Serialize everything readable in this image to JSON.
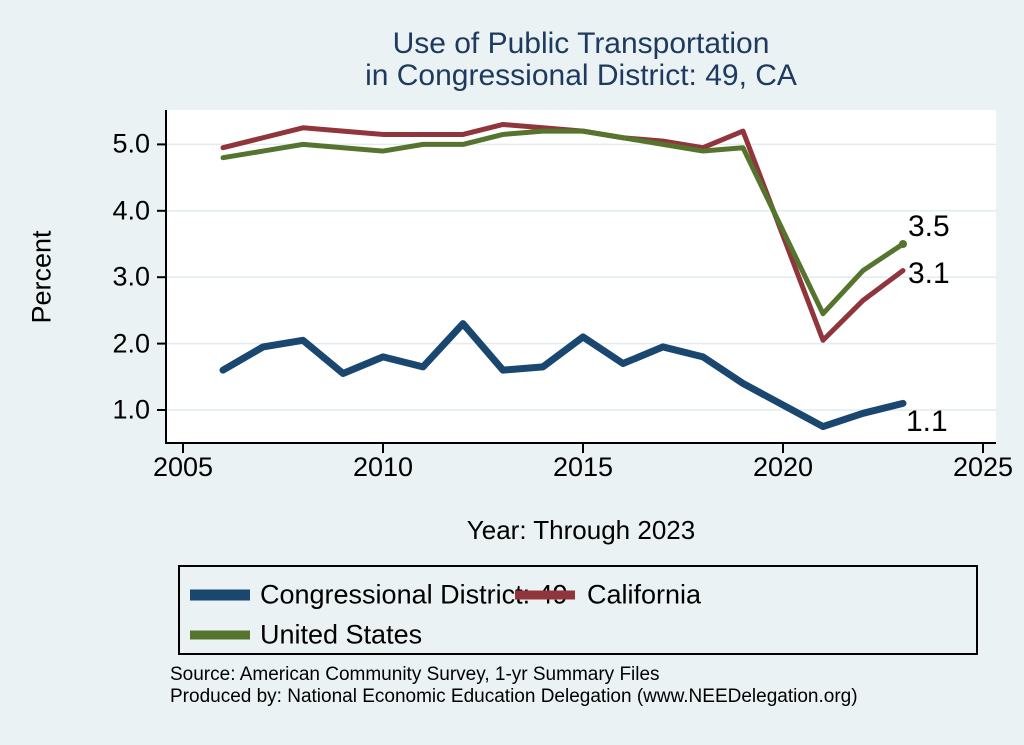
{
  "title": {
    "line1": "Use of Public Transportation",
    "line2": "in Congressional District: 49, CA"
  },
  "axes": {
    "y_label": "Percent",
    "x_label": "Year: Through 2023",
    "y_ticks": [
      "5.0",
      "4.0",
      "3.0",
      "2.0",
      "1.0"
    ],
    "x_ticks": [
      "2005",
      "2010",
      "2015",
      "2020",
      "2025"
    ]
  },
  "end_labels": {
    "united_states": "3.5",
    "california": "3.1",
    "district": "1.1"
  },
  "legend": {
    "items": [
      {
        "label": "Congressional District: 49",
        "color": "#1a476f"
      },
      {
        "label": "California",
        "color": "#90353b"
      },
      {
        "label": "United States",
        "color": "#55752f"
      }
    ]
  },
  "source": {
    "line1": "Source: American Community Survey, 1-yr Summary Files",
    "line2": "Produced by: National Economic Education Delegation (www.NEEDelegation.org)"
  },
  "colors": {
    "background": "#eaf2f3",
    "plot_background": "#ffffff",
    "grid": "#e2ecef",
    "axis": "#000000",
    "title": "#1f3a60",
    "navy": "#1a476f",
    "maroon": "#90353b",
    "forest": "#55752f"
  },
  "chart_data": {
    "type": "line",
    "title": "Use of Public Transportation in Congressional District: 49, CA",
    "xlabel": "Year: Through 2023",
    "ylabel": "Percent",
    "xlim": [
      2004.5,
      2025.5
    ],
    "ylim": [
      0.47,
      5.53
    ],
    "x_tick_values": [
      2005,
      2010,
      2015,
      2020,
      2025
    ],
    "y_tick_values": [
      1.0,
      2.0,
      3.0,
      4.0,
      5.0
    ],
    "grid": "horizontal",
    "legend_position": "bottom",
    "note": "2020 value missing; lines connect 2019 directly to 2021",
    "x": [
      2006,
      2007,
      2008,
      2009,
      2010,
      2011,
      2012,
      2013,
      2014,
      2015,
      2016,
      2017,
      2018,
      2019,
      2021,
      2022,
      2023
    ],
    "series": [
      {
        "name": "California",
        "color": "#90353b",
        "width": 5,
        "end_label": "3.1",
        "values": [
          4.95,
          5.1,
          5.25,
          5.2,
          5.15,
          5.15,
          5.15,
          5.3,
          5.25,
          5.2,
          5.1,
          5.05,
          4.95,
          5.2,
          2.05,
          2.65,
          3.1
        ]
      },
      {
        "name": "United States",
        "color": "#55752f",
        "width": 5,
        "end_marker": true,
        "end_label": "3.5",
        "values": [
          4.8,
          4.9,
          5.0,
          4.95,
          4.9,
          5.0,
          5.0,
          5.15,
          5.2,
          5.2,
          5.1,
          5.0,
          4.9,
          4.95,
          2.45,
          3.1,
          3.5
        ]
      },
      {
        "name": "Congressional District: 49",
        "color": "#1a476f",
        "width": 7,
        "end_label": "1.1",
        "values": [
          1.6,
          1.95,
          2.05,
          1.55,
          1.8,
          1.65,
          2.3,
          1.6,
          1.65,
          2.1,
          1.7,
          1.95,
          1.8,
          1.4,
          0.75,
          0.95,
          1.1
        ]
      }
    ]
  }
}
